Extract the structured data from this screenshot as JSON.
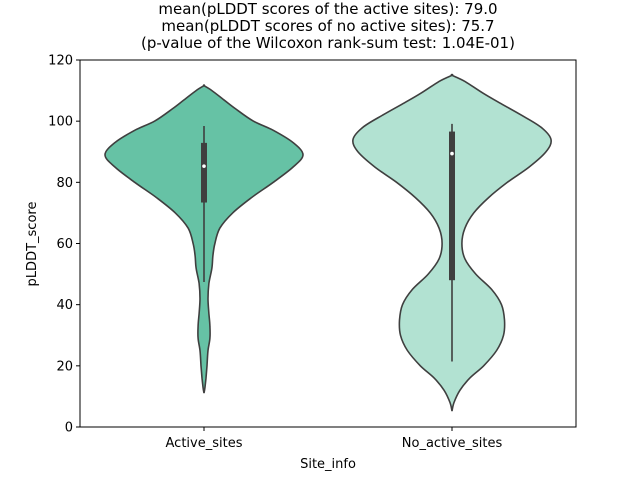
{
  "chart_data": {
    "type": "violin",
    "title_lines": [
      "mean(pLDDT scores of the active sites): 79.0",
      "mean(pLDDT scores of no active sites): 75.7",
      "(p-value of the Wilcoxon rank-sum test: 1.04E-01)"
    ],
    "xlabel": "Site_info",
    "ylabel": "pLDDT_score",
    "ylim": [
      0,
      120
    ],
    "yticks": [
      0,
      20,
      40,
      60,
      80,
      100,
      120
    ],
    "categories": [
      "Active_sites",
      "No_active_sites"
    ],
    "series": [
      {
        "category": "Active_sites",
        "color": "#66c2a5",
        "median": 85.3,
        "q1": 73.4,
        "q3": 92.9,
        "whisker_low": 47.4,
        "whisker_high": 98.4,
        "density": [
          [
            11.1,
            0
          ],
          [
            13,
            0.01
          ],
          [
            16,
            0.02
          ],
          [
            20,
            0.03
          ],
          [
            25,
            0.04
          ],
          [
            29,
            0.06
          ],
          [
            33,
            0.06
          ],
          [
            37,
            0.05
          ],
          [
            42,
            0.04
          ],
          [
            47,
            0.05
          ],
          [
            52,
            0.08
          ],
          [
            56,
            0.09
          ],
          [
            60,
            0.11
          ],
          [
            65,
            0.16
          ],
          [
            70,
            0.29
          ],
          [
            75,
            0.48
          ],
          [
            80,
            0.7
          ],
          [
            85,
            0.9
          ],
          [
            89,
            1.0
          ],
          [
            93,
            0.9
          ],
          [
            97,
            0.7
          ],
          [
            100,
            0.5
          ],
          [
            104,
            0.32
          ],
          [
            107,
            0.2
          ],
          [
            110,
            0.08
          ],
          [
            111.6,
            0
          ]
        ]
      },
      {
        "category": "No_active_sites",
        "color": "#b2e2d2",
        "median": 89.4,
        "q1": 48.0,
        "q3": 96.6,
        "whisker_low": 21.4,
        "whisker_high": 99.1,
        "density": [
          [
            5.2,
            0
          ],
          [
            8,
            0.02
          ],
          [
            12,
            0.08
          ],
          [
            16,
            0.18
          ],
          [
            20,
            0.32
          ],
          [
            25,
            0.45
          ],
          [
            30,
            0.52
          ],
          [
            35,
            0.53
          ],
          [
            40,
            0.5
          ],
          [
            45,
            0.4
          ],
          [
            50,
            0.24
          ],
          [
            55,
            0.13
          ],
          [
            60,
            0.1
          ],
          [
            65,
            0.13
          ],
          [
            70,
            0.22
          ],
          [
            75,
            0.37
          ],
          [
            80,
            0.56
          ],
          [
            85,
            0.78
          ],
          [
            90,
            0.95
          ],
          [
            94,
            1.0
          ],
          [
            98,
            0.9
          ],
          [
            102,
            0.7
          ],
          [
            106,
            0.48
          ],
          [
            109,
            0.32
          ],
          [
            113,
            0.13
          ],
          [
            115,
            0
          ]
        ]
      }
    ]
  }
}
